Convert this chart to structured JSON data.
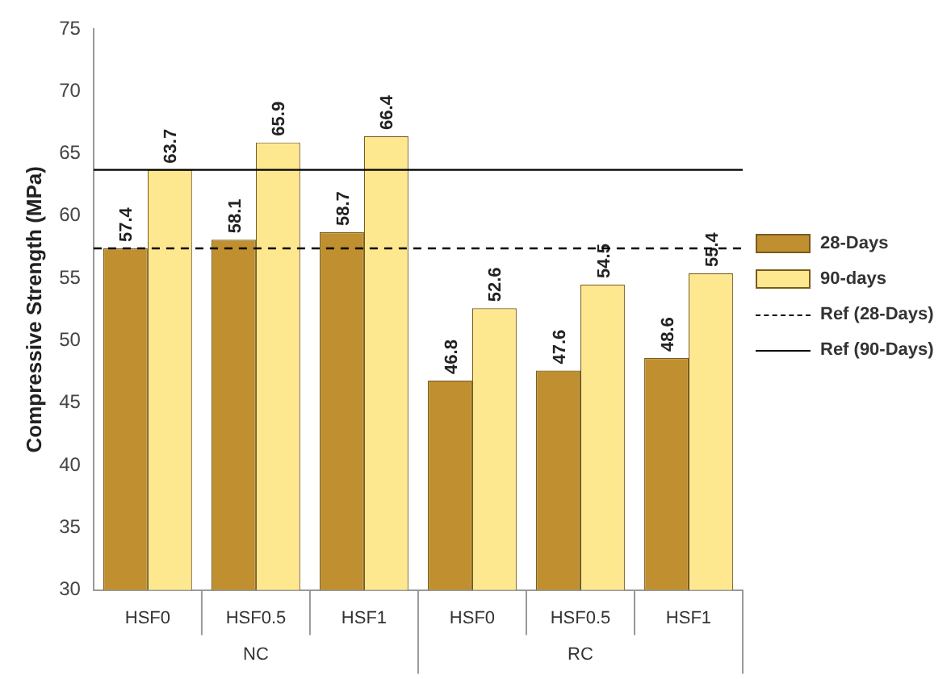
{
  "chart_data": {
    "type": "bar",
    "ylabel": "Compressive Strength (MPa)",
    "categories": [
      "HSF0",
      "HSF0.5",
      "HSF1",
      "HSF0",
      "HSF0.5",
      "HSF1"
    ],
    "series": [
      {
        "name": "28-Days",
        "color": "#bf8f30",
        "values": [
          57.4,
          58.1,
          58.7,
          46.8,
          47.6,
          48.6
        ]
      },
      {
        "name": "90-days",
        "color": "#fde88f",
        "values": [
          63.7,
          65.9,
          66.4,
          52.6,
          54.5,
          55.4
        ]
      }
    ],
    "ylim": [
      30,
      75
    ],
    "yticks": [
      30,
      35,
      40,
      45,
      50,
      55,
      60,
      65,
      70,
      75
    ],
    "grid": false,
    "data_labels": true,
    "legend": "right",
    "ref_lines": [
      {
        "axis": "y",
        "value": 57.4,
        "label": "Ref (28-Days)",
        "color": "#000000",
        "line_style": "dashed"
      },
      {
        "axis": "y",
        "value": 63.7,
        "label": "Ref (90-Days)",
        "color": "#000000",
        "line_style": "solid"
      }
    ],
    "annotations": [
      "NC",
      "RC"
    ]
  }
}
